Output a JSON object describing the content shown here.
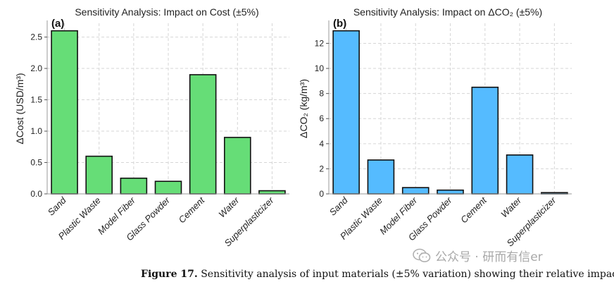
{
  "chart_data": [
    {
      "type": "bar",
      "panel_label": "(a)",
      "title": "Sensitivity Analysis: Impact on Cost (±5%)",
      "ylabel": "ΔCost (USD/m³)",
      "xlabel": "",
      "categories": [
        "Sand",
        "Plastic Waste",
        "Model Fiber",
        "Glass Powder",
        "Cement",
        "Water",
        "Superplasticizer"
      ],
      "values": [
        2.6,
        0.6,
        0.25,
        0.2,
        1.9,
        0.9,
        0.05
      ],
      "ylim": [
        0,
        2.72
      ],
      "yticks": [
        0.0,
        0.5,
        1.0,
        1.5,
        2.0,
        2.5
      ],
      "ytick_labels": [
        "0.0",
        "0.5",
        "1.0",
        "1.5",
        "2.0",
        "2.5"
      ],
      "bar_color": "#66dd77",
      "grid": true,
      "legend": "none"
    },
    {
      "type": "bar",
      "panel_label": "(b)",
      "title": "Sensitivity Analysis: Impact on ΔCO₂ (±5%)",
      "ylabel": "ΔCO₂ (kg/m³)",
      "xlabel": "",
      "categories": [
        "Sand",
        "Plastic Waste",
        "Model Fiber",
        "Glass Powder",
        "Cement",
        "Water",
        "Superplasticizer"
      ],
      "values": [
        13.0,
        2.7,
        0.5,
        0.3,
        8.5,
        3.1,
        0.1
      ],
      "ylim": [
        0,
        13.6
      ],
      "yticks": [
        0,
        2,
        4,
        6,
        8,
        10,
        12
      ],
      "ytick_labels": [
        "0",
        "2",
        "4",
        "6",
        "8",
        "10",
        "12"
      ],
      "bar_color": "#55bbff",
      "grid": true,
      "legend": "none"
    }
  ],
  "caption": {
    "label": "Figure 17.",
    "text": "Sensitivity analysis of input materials (±5% variation) showing their relative impact on"
  },
  "watermark": {
    "text": "公众号 · 研而有信er",
    "icon": "wechat-icon"
  }
}
